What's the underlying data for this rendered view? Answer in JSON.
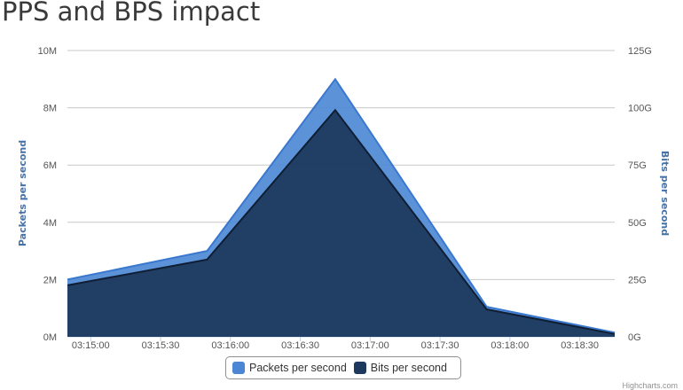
{
  "title": "PPS and BPS impact",
  "credit": "Highcharts.com",
  "chart_data": {
    "type": "area",
    "title": "PPS and BPS impact",
    "x": [
      "03:14:50",
      "03:15:50",
      "03:16:45",
      "03:17:50",
      "03:18:45"
    ],
    "x_ticks": [
      "03:15:00",
      "03:15:30",
      "03:16:00",
      "03:16:30",
      "03:17:00",
      "03:17:30",
      "03:18:00",
      "03:18:30"
    ],
    "y_left": {
      "label": "Packets per second",
      "ticks": [
        "0M",
        "2M",
        "4M",
        "6M",
        "8M",
        "10M"
      ],
      "range": [
        0,
        10000000
      ]
    },
    "y_right": {
      "label": "Bits per second",
      "ticks": [
        "0G",
        "25G",
        "50G",
        "75G",
        "100G",
        "125G"
      ],
      "range": [
        0,
        125000000000
      ]
    },
    "grid": true,
    "legend_position": "bottom",
    "series": [
      {
        "name": "Packets per second",
        "axis": "left",
        "color": "#4A86D4",
        "values": [
          2000000,
          3000000,
          9000000,
          1050000,
          150000
        ]
      },
      {
        "name": "Bits per second",
        "axis": "right",
        "color": "#1D3A5E",
        "values": [
          22500000000,
          33750000000,
          99000000000,
          12000000000,
          1250000000
        ]
      }
    ]
  }
}
